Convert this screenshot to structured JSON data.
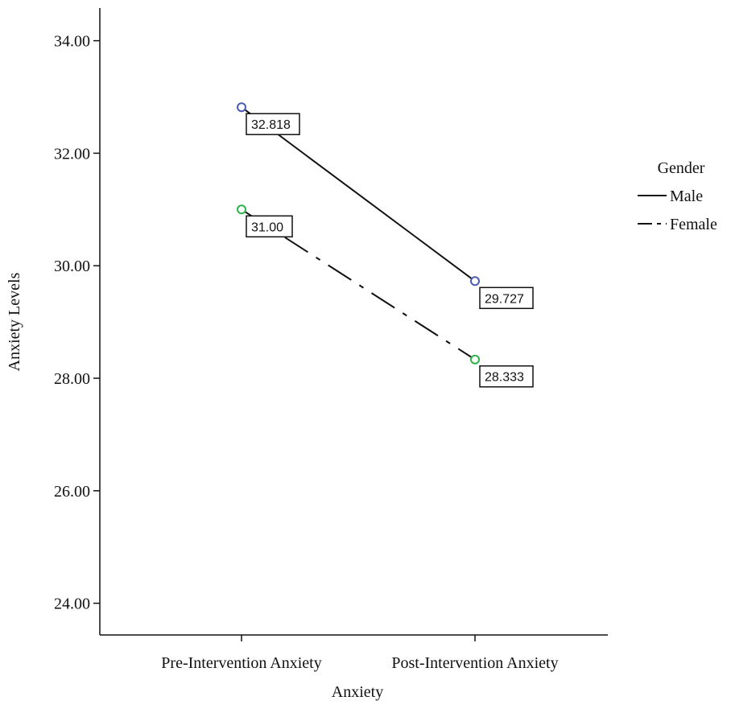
{
  "chart_data": {
    "type": "line",
    "categories": [
      "Pre-Intervention Anxiety",
      "Post-Intervention Anxiety"
    ],
    "series": [
      {
        "name": "Male",
        "values": [
          32.818,
          29.727
        ],
        "labels": [
          "32.818",
          "29.727"
        ],
        "marker_color": "#4a5bb5",
        "line_style": "solid"
      },
      {
        "name": "Female",
        "values": [
          31.0,
          28.333
        ],
        "labels": [
          "31.00",
          "28.333"
        ],
        "marker_color": "#2db34a",
        "line_style": "dashdot"
      }
    ],
    "title": "",
    "xlabel": "Anxiety",
    "ylabel": "Anxiety Levels",
    "ylim": [
      23.7,
      35.4
    ],
    "yticks": [
      "24.00",
      "26.00",
      "28.00",
      "30.00",
      "32.00",
      "34.00"
    ],
    "ytick_values": [
      24,
      26,
      28,
      30,
      32,
      34
    ],
    "legend_title": "Gender",
    "legend_position": "right",
    "grid": false
  }
}
